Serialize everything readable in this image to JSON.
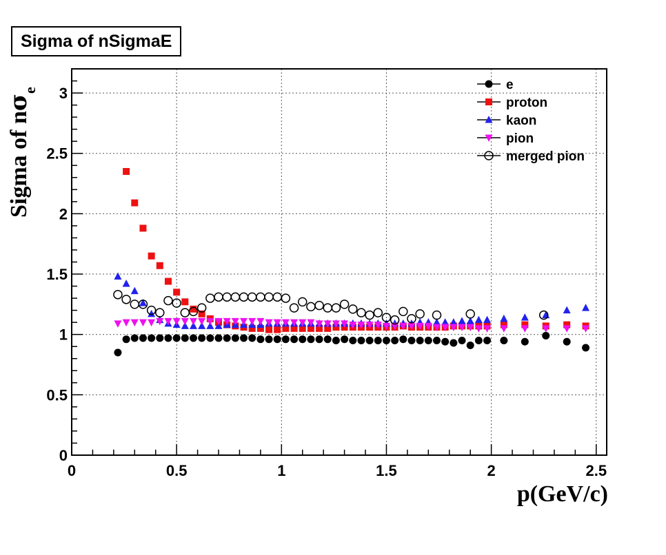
{
  "chart_data": {
    "type": "scatter",
    "title": "Sigma of nSigmaE",
    "xlabel": "p(GeV/c)",
    "ylabel_main": "Sigma of n",
    "ylabel_sigma": "σ",
    "ylabel_sub": "e",
    "xlim": [
      0,
      2.55
    ],
    "ylim": [
      0,
      3.2
    ],
    "xticks": [
      0,
      0.5,
      1,
      1.5,
      2,
      2.5
    ],
    "xtick_labels": [
      "0",
      "0.5",
      "1",
      "1.5",
      "2",
      "2.5"
    ],
    "yticks": [
      0,
      0.5,
      1,
      1.5,
      2,
      2.5,
      3
    ],
    "ytick_labels": [
      "0",
      "0.5",
      "1",
      "1.5",
      "2",
      "2.5",
      "3"
    ],
    "grid": true,
    "legend_position": "top-right",
    "series": [
      {
        "name": "e",
        "marker": "filled-circle",
        "color": "#000000",
        "x": [
          0.22,
          0.26,
          0.3,
          0.34,
          0.38,
          0.42,
          0.46,
          0.5,
          0.54,
          0.58,
          0.62,
          0.66,
          0.7,
          0.74,
          0.78,
          0.82,
          0.86,
          0.9,
          0.94,
          0.98,
          1.02,
          1.06,
          1.1,
          1.14,
          1.18,
          1.22,
          1.26,
          1.3,
          1.34,
          1.38,
          1.42,
          1.46,
          1.5,
          1.54,
          1.58,
          1.62,
          1.66,
          1.7,
          1.74,
          1.78,
          1.82,
          1.86,
          1.9,
          1.94,
          1.98,
          2.06,
          2.16,
          2.26,
          2.36,
          2.45
        ],
        "y": [
          0.85,
          0.96,
          0.97,
          0.97,
          0.97,
          0.97,
          0.97,
          0.97,
          0.97,
          0.97,
          0.97,
          0.97,
          0.97,
          0.97,
          0.97,
          0.97,
          0.97,
          0.96,
          0.96,
          0.96,
          0.96,
          0.96,
          0.96,
          0.96,
          0.96,
          0.96,
          0.95,
          0.96,
          0.95,
          0.95,
          0.95,
          0.95,
          0.95,
          0.95,
          0.96,
          0.95,
          0.95,
          0.95,
          0.95,
          0.94,
          0.93,
          0.95,
          0.91,
          0.95,
          0.95,
          0.95,
          0.94,
          0.99,
          0.94,
          0.89
        ]
      },
      {
        "name": "proton",
        "marker": "filled-square",
        "color": "#ee1111",
        "x": [
          0.26,
          0.3,
          0.34,
          0.38,
          0.42,
          0.46,
          0.5,
          0.54,
          0.58,
          0.62,
          0.66,
          0.7,
          0.74,
          0.78,
          0.82,
          0.86,
          0.9,
          0.94,
          0.98,
          1.02,
          1.06,
          1.1,
          1.14,
          1.18,
          1.22,
          1.26,
          1.3,
          1.34,
          1.38,
          1.42,
          1.46,
          1.5,
          1.54,
          1.58,
          1.62,
          1.66,
          1.7,
          1.74,
          1.78,
          1.82,
          1.86,
          1.9,
          1.94,
          1.98,
          2.06,
          2.16,
          2.26,
          2.36,
          2.45
        ],
        "y": [
          2.35,
          2.09,
          1.88,
          1.65,
          1.57,
          1.44,
          1.35,
          1.27,
          1.21,
          1.17,
          1.13,
          1.1,
          1.08,
          1.07,
          1.06,
          1.05,
          1.05,
          1.04,
          1.04,
          1.05,
          1.05,
          1.05,
          1.05,
          1.05,
          1.05,
          1.06,
          1.06,
          1.06,
          1.06,
          1.06,
          1.06,
          1.06,
          1.06,
          1.07,
          1.06,
          1.06,
          1.06,
          1.06,
          1.06,
          1.07,
          1.07,
          1.07,
          1.07,
          1.07,
          1.08,
          1.08,
          1.07,
          1.08,
          1.07
        ]
      },
      {
        "name": "kaon",
        "marker": "filled-triangle-up",
        "color": "#2222ee",
        "x": [
          0.22,
          0.26,
          0.3,
          0.34,
          0.38,
          0.42,
          0.46,
          0.5,
          0.54,
          0.58,
          0.62,
          0.66,
          0.7,
          0.74,
          0.78,
          0.82,
          0.86,
          0.9,
          0.94,
          0.98,
          1.02,
          1.06,
          1.1,
          1.14,
          1.18,
          1.22,
          1.26,
          1.3,
          1.34,
          1.38,
          1.42,
          1.46,
          1.5,
          1.54,
          1.58,
          1.62,
          1.66,
          1.7,
          1.74,
          1.78,
          1.82,
          1.86,
          1.9,
          1.94,
          1.98,
          2.06,
          2.16,
          2.26,
          2.36,
          2.45
        ],
        "y": [
          1.48,
          1.42,
          1.36,
          1.26,
          1.17,
          1.12,
          1.09,
          1.08,
          1.07,
          1.07,
          1.07,
          1.07,
          1.07,
          1.08,
          1.08,
          1.08,
          1.08,
          1.08,
          1.09,
          1.09,
          1.09,
          1.09,
          1.09,
          1.09,
          1.09,
          1.09,
          1.09,
          1.09,
          1.09,
          1.09,
          1.09,
          1.09,
          1.09,
          1.09,
          1.09,
          1.09,
          1.1,
          1.1,
          1.1,
          1.1,
          1.1,
          1.11,
          1.11,
          1.12,
          1.12,
          1.13,
          1.14,
          1.16,
          1.2,
          1.22
        ]
      },
      {
        "name": "pion",
        "marker": "filled-triangle-down",
        "color": "#ee11ee",
        "x": [
          0.22,
          0.26,
          0.3,
          0.34,
          0.38,
          0.42,
          0.46,
          0.5,
          0.54,
          0.58,
          0.62,
          0.66,
          0.7,
          0.74,
          0.78,
          0.82,
          0.86,
          0.9,
          0.94,
          0.98,
          1.02,
          1.06,
          1.1,
          1.14,
          1.18,
          1.22,
          1.26,
          1.3,
          1.34,
          1.38,
          1.42,
          1.46,
          1.5,
          1.54,
          1.58,
          1.62,
          1.66,
          1.7,
          1.74,
          1.78,
          1.82,
          1.86,
          1.9,
          1.94,
          1.98,
          2.06,
          2.16,
          2.26,
          2.36,
          2.45
        ],
        "y": [
          1.09,
          1.1,
          1.1,
          1.1,
          1.1,
          1.11,
          1.11,
          1.11,
          1.11,
          1.11,
          1.11,
          1.11,
          1.11,
          1.11,
          1.11,
          1.11,
          1.11,
          1.11,
          1.1,
          1.1,
          1.1,
          1.1,
          1.1,
          1.1,
          1.09,
          1.09,
          1.09,
          1.09,
          1.08,
          1.08,
          1.08,
          1.08,
          1.07,
          1.07,
          1.07,
          1.07,
          1.07,
          1.07,
          1.06,
          1.06,
          1.06,
          1.06,
          1.06,
          1.05,
          1.05,
          1.05,
          1.05,
          1.05,
          1.05,
          1.05
        ]
      },
      {
        "name": "merged pion",
        "marker": "open-circle",
        "color": "#000000",
        "x": [
          0.22,
          0.26,
          0.3,
          0.34,
          0.38,
          0.42,
          0.46,
          0.5,
          0.54,
          0.58,
          0.62,
          0.66,
          0.7,
          0.74,
          0.78,
          0.82,
          0.86,
          0.9,
          0.94,
          0.98,
          1.02,
          1.06,
          1.1,
          1.14,
          1.18,
          1.22,
          1.26,
          1.3,
          1.34,
          1.38,
          1.42,
          1.46,
          1.5,
          1.54,
          1.58,
          1.62,
          1.66,
          1.74,
          1.9,
          2.25
        ],
        "y": [
          1.33,
          1.29,
          1.25,
          1.25,
          1.2,
          1.18,
          1.28,
          1.26,
          1.18,
          1.19,
          1.22,
          1.3,
          1.31,
          1.31,
          1.31,
          1.31,
          1.31,
          1.31,
          1.31,
          1.31,
          1.3,
          1.22,
          1.27,
          1.23,
          1.24,
          1.22,
          1.22,
          1.25,
          1.21,
          1.18,
          1.16,
          1.18,
          1.14,
          1.12,
          1.19,
          1.13,
          1.17,
          1.16,
          1.17,
          1.16
        ]
      }
    ]
  }
}
